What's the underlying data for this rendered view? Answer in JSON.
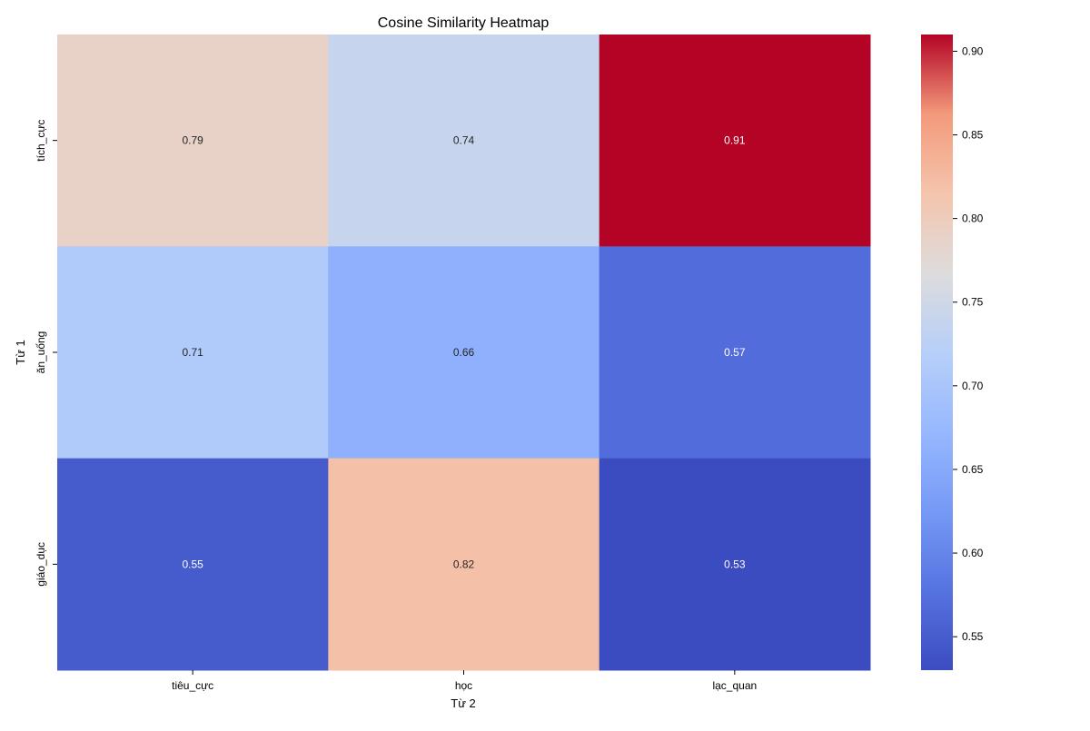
{
  "chart_data": {
    "type": "heatmap",
    "title": "Cosine Similarity Heatmap",
    "xlabel": "Từ 2",
    "ylabel": "Từ 1",
    "x_categories": [
      "tiêu_cực",
      "học",
      "lạc_quan"
    ],
    "y_categories": [
      "tích_cực",
      "ăn_uống",
      "giáo_dục"
    ],
    "values": [
      [
        0.79,
        0.74,
        0.91
      ],
      [
        0.71,
        0.66,
        0.57
      ],
      [
        0.55,
        0.82,
        0.53
      ]
    ],
    "value_labels": [
      [
        "0.79",
        "0.74",
        "0.91"
      ],
      [
        "0.71",
        "0.66",
        "0.57"
      ],
      [
        "0.55",
        "0.82",
        "0.53"
      ]
    ],
    "colormap": "coolwarm",
    "color_range": [
      0.53,
      0.91
    ],
    "colorbar_ticks": [
      0.55,
      0.6,
      0.65,
      0.7,
      0.75,
      0.8,
      0.85,
      0.9
    ],
    "colorbar_tick_labels": [
      "0.55",
      "0.60",
      "0.65",
      "0.70",
      "0.75",
      "0.80",
      "0.85",
      "0.90"
    ],
    "colorbar_position": "right",
    "grid": false
  }
}
